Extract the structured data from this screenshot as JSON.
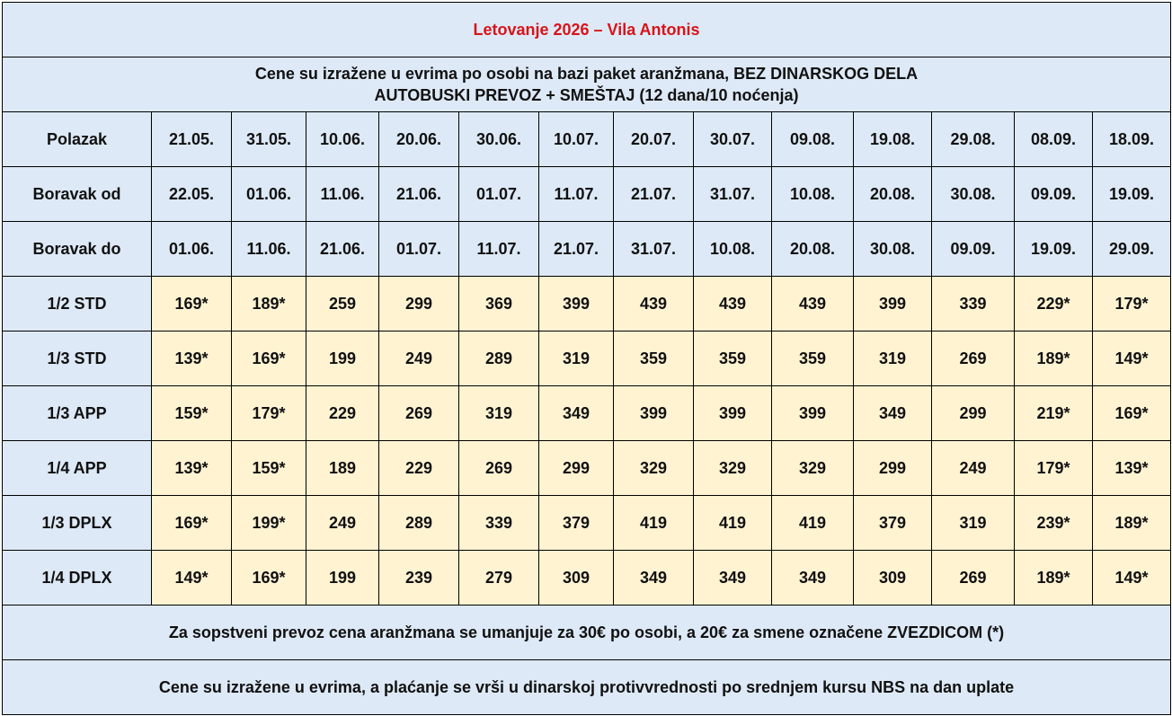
{
  "title": "Letovanje 2026 – Vila Antonis",
  "info": {
    "line1": "Cene su izražene u evrima po osobi na bazi paket aranžmana, BEZ DINARSKOG DELA",
    "line2": "AUTOBUSKI PREVOZ + SMEŠTAJ (12 dana/10 noćenja)"
  },
  "dates": [
    {
      "label": "Polazak",
      "values": [
        "21.05.",
        "31.05.",
        "10.06.",
        "20.06.",
        "30.06.",
        "10.07.",
        "20.07.",
        "30.07.",
        "09.08.",
        "19.08.",
        "29.08.",
        "08.09.",
        "18.09."
      ]
    },
    {
      "label": "Boravak od",
      "values": [
        "22.05.",
        "01.06.",
        "11.06.",
        "21.06.",
        "01.07.",
        "11.07.",
        "21.07.",
        "31.07.",
        "10.08.",
        "20.08.",
        "30.08.",
        "09.09.",
        "19.09."
      ]
    },
    {
      "label": "Boravak do",
      "values": [
        "01.06.",
        "11.06.",
        "21.06.",
        "01.07.",
        "11.07.",
        "21.07.",
        "31.07.",
        "10.08.",
        "20.08.",
        "30.08.",
        "09.09.",
        "19.09.",
        "29.09."
      ]
    }
  ],
  "prices": [
    {
      "label": "1/2 STD",
      "values": [
        "169*",
        "189*",
        "259",
        "299",
        "369",
        "399",
        "439",
        "439",
        "439",
        "399",
        "339",
        "229*",
        "179*"
      ]
    },
    {
      "label": "1/3 STD",
      "values": [
        "139*",
        "169*",
        "199",
        "249",
        "289",
        "319",
        "359",
        "359",
        "359",
        "319",
        "269",
        "189*",
        "149*"
      ]
    },
    {
      "label": "1/3 APP",
      "values": [
        "159*",
        "179*",
        "229",
        "269",
        "319",
        "349",
        "399",
        "399",
        "399",
        "349",
        "299",
        "219*",
        "169*"
      ]
    },
    {
      "label": "1/4 APP",
      "values": [
        "139*",
        "159*",
        "189",
        "229",
        "269",
        "299",
        "329",
        "329",
        "329",
        "299",
        "249",
        "179*",
        "139*"
      ]
    },
    {
      "label": "1/3 DPLX",
      "values": [
        "169*",
        "199*",
        "249",
        "289",
        "339",
        "379",
        "419",
        "419",
        "419",
        "379",
        "319",
        "239*",
        "189*"
      ]
    },
    {
      "label": "1/4 DPLX",
      "values": [
        "149*",
        "169*",
        "199",
        "239",
        "279",
        "309",
        "349",
        "349",
        "349",
        "309",
        "269",
        "189*",
        "149*"
      ]
    }
  ],
  "notes": [
    "Za sopstveni prevoz cena aranžmana se umanjuje za 30€ po osobi, a 20€ za smene označene ZVEZDICOM (*)",
    "Cene su izražene u evrima, a plaćanje se vrši u dinarskoj protivvrednosti po srednjem kursu NBS na dan uplate"
  ],
  "colors": {
    "title": "#d7141a",
    "header_bg": "#dde9f6",
    "price_bg": "#fff3d2",
    "border": "#000000"
  }
}
